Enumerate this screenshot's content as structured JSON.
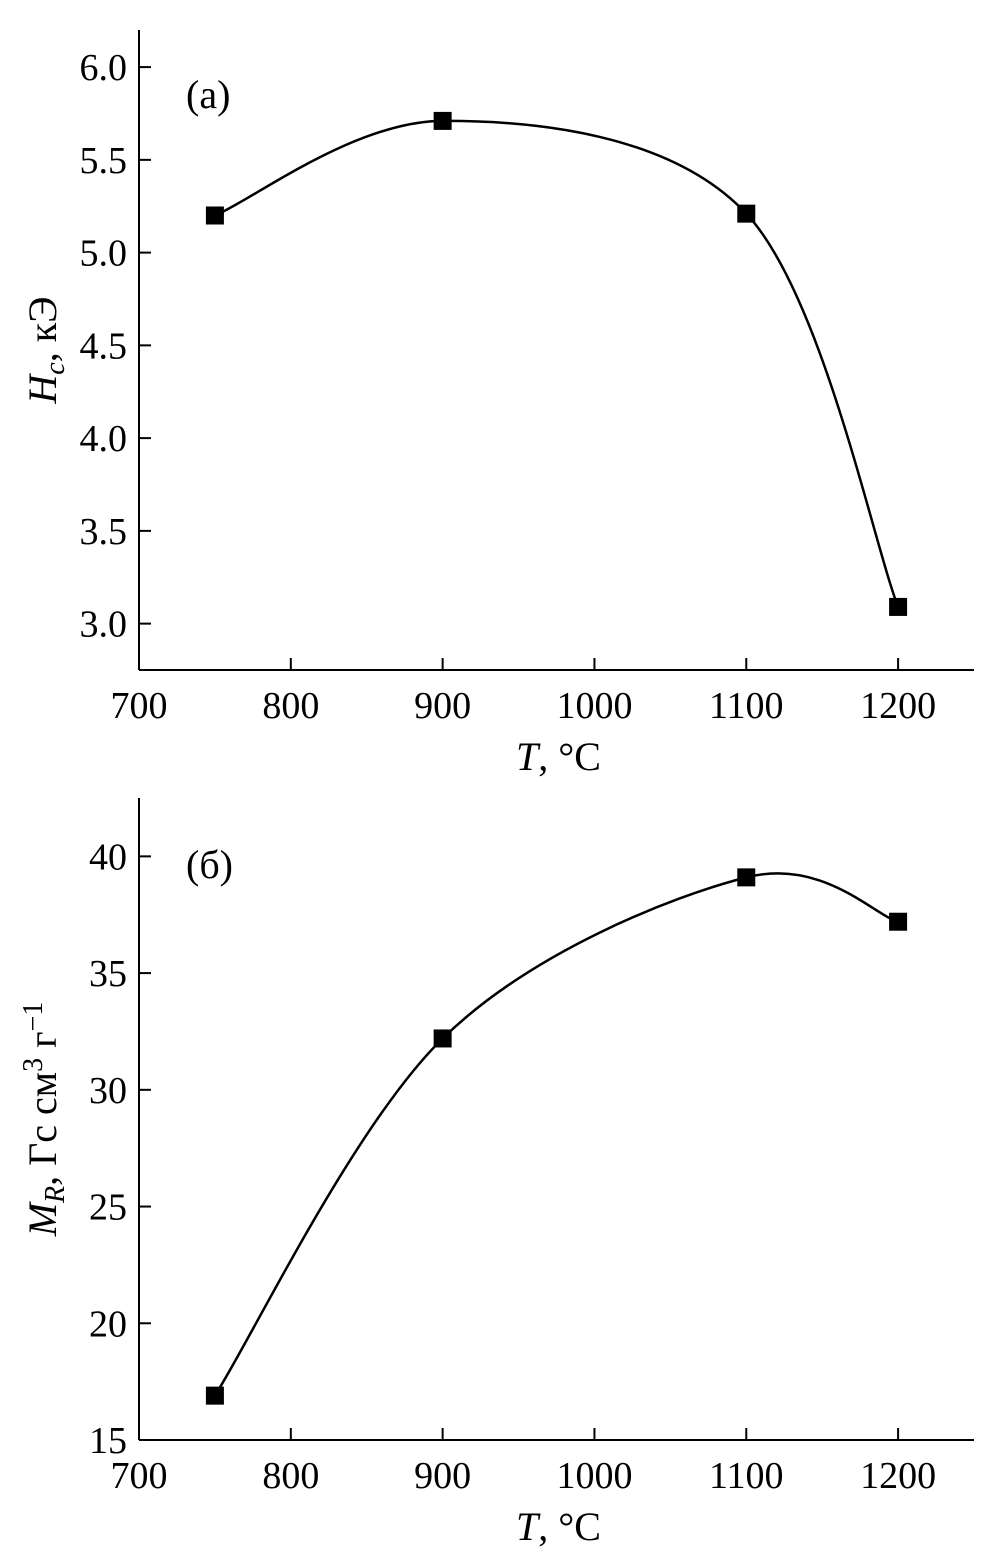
{
  "chart_data": [
    {
      "type": "line",
      "panel_label": "(а)",
      "xlabel": {
        "main": "T",
        "rest": ", °C"
      },
      "ylabel": {
        "main": "H",
        "sub": "c",
        "rest": ", кЭ"
      },
      "xlim": [
        700,
        1250
      ],
      "ylim": [
        2.75,
        6.2
      ],
      "xticks": [
        700,
        800,
        900,
        1000,
        1100,
        1200
      ],
      "yticks": [
        "3.0",
        "3.5",
        "4.0",
        "4.5",
        "5.0",
        "5.5",
        "6.0"
      ],
      "marker": "square",
      "line": "smooth",
      "x": [
        750,
        900,
        1100,
        1200
      ],
      "y": [
        5.2,
        5.71,
        5.21,
        3.09
      ]
    },
    {
      "type": "line",
      "panel_label": "(б)",
      "xlabel": {
        "main": "T",
        "rest": ", °C"
      },
      "ylabel": {
        "main": "M",
        "sub": "R",
        "rest": ", Гс см",
        "sup1": "3",
        "rest2": " г",
        "sup2": "−1"
      },
      "xlim": [
        700,
        1250
      ],
      "ylim": [
        15,
        42.5
      ],
      "xticks": [
        700,
        800,
        900,
        1000,
        1100,
        1200
      ],
      "yticks": [
        "15",
        "20",
        "25",
        "30",
        "35",
        "40"
      ],
      "marker": "square",
      "line": "smooth",
      "x": [
        750,
        900,
        1100,
        1200
      ],
      "y": [
        16.9,
        32.2,
        39.1,
        37.2
      ]
    }
  ]
}
